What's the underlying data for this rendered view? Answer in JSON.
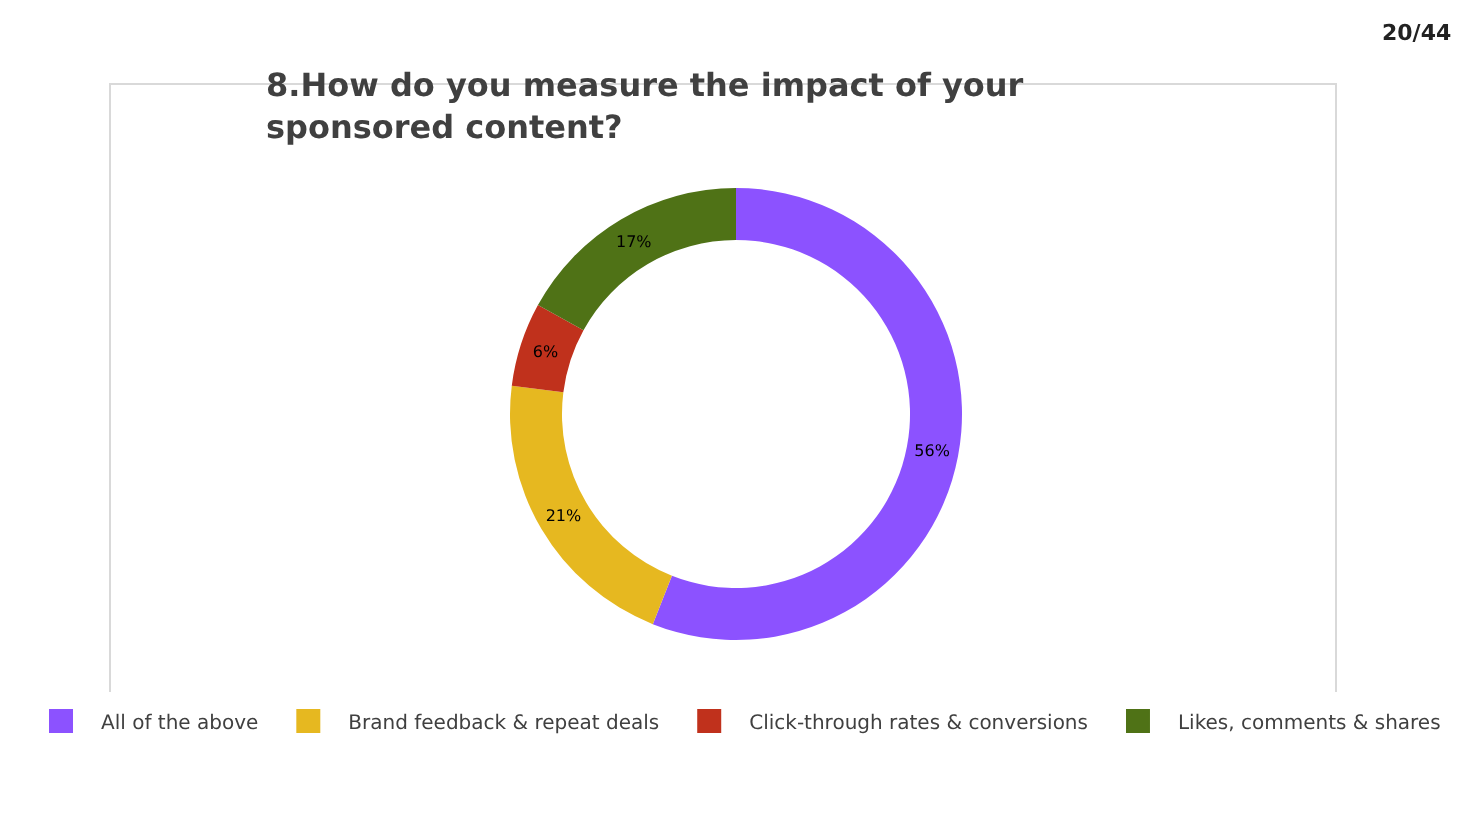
{
  "chart_data": {
    "type": "donut",
    "title": "8.How do you measure the impact of your sponsored content?",
    "categories": [
      "All of the above",
      "Brand feedback & repeat deals",
      "Click-through rates & conversions",
      "Likes, comments & shares"
    ],
    "values": [
      56,
      21,
      6,
      17
    ],
    "value_labels": [
      "56%",
      "21%",
      "6%",
      "17%"
    ],
    "colors": [
      "#8c52ff",
      "#e6b820",
      "#c0311c",
      "#4f7216"
    ],
    "legend": "bottom",
    "annotations": [
      "20/44"
    ]
  }
}
